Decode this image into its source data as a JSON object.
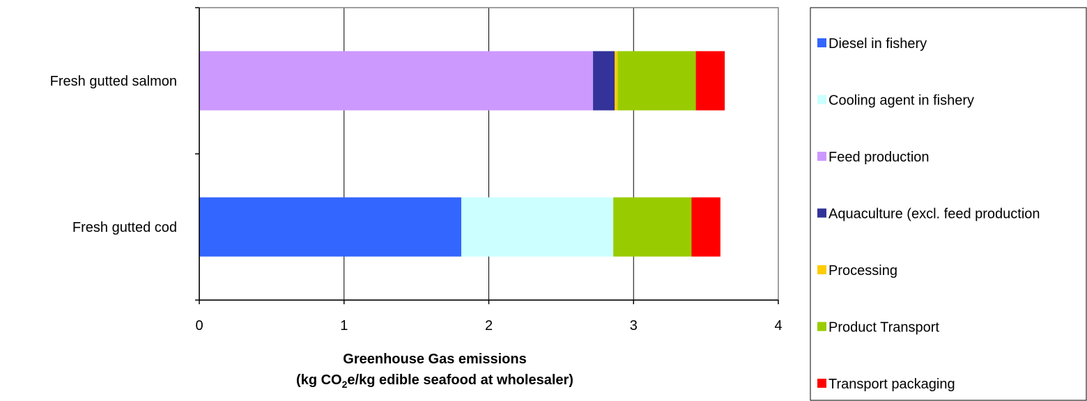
{
  "chart_data": {
    "type": "bar",
    "orientation": "horizontal",
    "stacked": true,
    "categories": [
      "Fresh gutted salmon",
      "Fresh gutted cod"
    ],
    "series": [
      {
        "name": "Diesel in fishery",
        "color": "#3366ff",
        "values": [
          0,
          1.81
        ]
      },
      {
        "name": "Cooling agent in fishery",
        "color": "#ccffff",
        "values": [
          0,
          1.05
        ]
      },
      {
        "name": "Feed production",
        "color": "#cc99ff",
        "values": [
          2.72,
          0
        ]
      },
      {
        "name": "Aquaculture (excl. feed production",
        "color": "#333399",
        "values": [
          0.15,
          0
        ]
      },
      {
        "name": "Processing",
        "color": "#ffcc00",
        "values": [
          0.02,
          0
        ]
      },
      {
        "name": "Product Transport",
        "color": "#99cc00",
        "values": [
          0.54,
          0.54
        ]
      },
      {
        "name": "Transport packaging",
        "color": "#ff0000",
        "values": [
          0.2,
          0.2
        ]
      }
    ],
    "xlim": [
      0,
      4
    ],
    "xticks": [
      "0",
      "1",
      "2",
      "3",
      "4"
    ],
    "xlabel_line1": "Greenhouse Gas emissions",
    "xlabel_line2_pre": "(kg CO",
    "xlabel_line2_sub": "2",
    "xlabel_line2_post": "e/kg edible seafood at wholesaler)",
    "ylabel": "",
    "grid": "vertical",
    "legend_position": "right"
  }
}
